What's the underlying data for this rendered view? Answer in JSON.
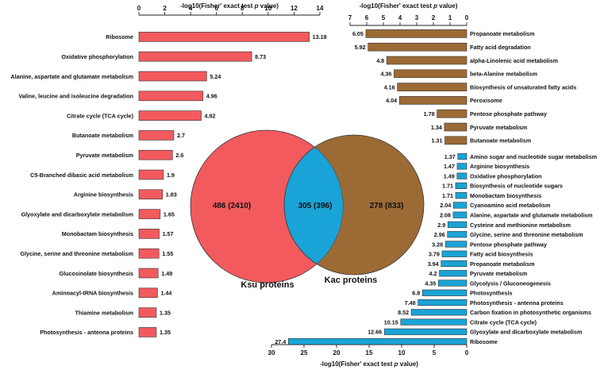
{
  "chart_data": [
    {
      "type": "bar",
      "orientation": "horizontal",
      "panel": "left",
      "xlabel": "-log10(Fisher' exact test p value)",
      "xlim": [
        0,
        14
      ],
      "xticks": [
        0,
        2,
        4,
        6,
        8,
        10,
        12,
        14
      ],
      "color": "#F25A5E",
      "categories": [
        "Ribosome",
        "Oxidative phosphorylation",
        "Alanine, aspartate and glutamate metabolism",
        "Valine, leucine and isoleucine degradation",
        "Citrate cycle (TCA cycle)",
        "Butanoate metabolism",
        "Pyruvate metabolism",
        "C5-Branched dibasic acid metabolism",
        "Arginine biosynthesis",
        "Glyoxylate and dicarboxylate metabolism",
        "Monobactam biosynthesis",
        "Glycine, serine and threonine metabolism",
        "Glucosinolate biosynthesis",
        "Aminoacyl-tRNA biosynthesis",
        "Thiamine metabolism",
        "Photosynthesis - antenna proteins"
      ],
      "values": [
        13.18,
        8.73,
        5.24,
        4.96,
        4.82,
        2.7,
        2.6,
        1.9,
        1.83,
        1.65,
        1.57,
        1.55,
        1.49,
        1.44,
        1.35,
        1.35
      ],
      "labels": [
        "13.18",
        "8.73",
        "5.24",
        "4.96",
        "4.82",
        "2.7",
        "2.6",
        "1.9",
        "1.83",
        "1.65",
        "1.57",
        "1.55",
        "1.49",
        "1.44",
        "1.35",
        "1.35"
      ]
    },
    {
      "type": "bar",
      "orientation": "horizontal",
      "panel": "top-right",
      "xlabel": "-log10(Fisher' exact test p value)",
      "xlim": [
        0,
        7
      ],
      "xticks": [
        7,
        6,
        5,
        4,
        3,
        2,
        1,
        0
      ],
      "reversed": true,
      "color": "#9C6A35",
      "categories": [
        "Propanoate metabolism",
        "Fatty acid degradation",
        "alpha-Linolenic acid metabolism",
        "beta-Alanine metabolism",
        "Biosynthesis of unsaturated fatty acids",
        "Peroxisome",
        "Pentose phosphate pathway",
        "Pyruvate metabolism",
        "Butanoate metabolism"
      ],
      "values": [
        6.05,
        5.92,
        4.8,
        4.36,
        4.16,
        4.04,
        1.78,
        1.34,
        1.31
      ],
      "labels": [
        "6.05",
        "5.92",
        "4.8",
        "4.36",
        "4.16",
        "4.04",
        "1.78",
        "1.34",
        "1.31"
      ]
    },
    {
      "type": "bar",
      "orientation": "horizontal",
      "panel": "bottom-right",
      "xlabel": "-log10(Fisher' exact test p value)",
      "xlim": [
        0,
        30
      ],
      "xticks": [
        30,
        25,
        20,
        15,
        10,
        5,
        0
      ],
      "reversed": true,
      "color": "#1AA3D6",
      "categories": [
        "Amino sugar and nucleotide sugar metabolism",
        "Arginine biosynthesis",
        "Oxidative phosphorylation",
        "Biosynthesis of nucleotide sugars",
        "Monobactam biosynthesis",
        "Cyanoamino acid metabolism",
        "Alanine, aspartate and glutamate metabolism",
        "Cysteine and methionine metabolism",
        "Glycine, serine and threonine metabolism",
        "Pentose phosphate pathway",
        "Fatty acid biosynthesis",
        "Propanoate metabolism",
        "Pyruvate metabolism",
        "Glycolysis / Gluconeogenesis",
        "Photosynthesis",
        "Photosynthesis - antenna proteins",
        "Carbon fixation in photosynthetic organisms",
        "Citrate cycle (TCA cycle)",
        "Glyoxylate and dicarboxylate metabolism",
        "Ribosome"
      ],
      "values": [
        1.37,
        1.47,
        1.49,
        1.71,
        1.71,
        2.04,
        2.08,
        2.9,
        2.96,
        3.28,
        3.79,
        3.94,
        4.2,
        4.35,
        6.8,
        7.48,
        8.52,
        10.15,
        12.66,
        27.4
      ],
      "labels": [
        "1.37",
        "1.47",
        "1.49",
        "1.71",
        "1.71",
        "2.04",
        "2.08",
        "2.9",
        "2.96",
        "3.28",
        "3.79",
        "3.94",
        "4.2",
        "4.35",
        "6.8",
        "7.48",
        "8.52",
        "10.15",
        "12.66",
        "27.4"
      ]
    }
  ],
  "venn": {
    "left": {
      "name": "Ksu proteins",
      "label": "486  (2410)",
      "color": "#F25A5E"
    },
    "right": {
      "name": "Kac proteins",
      "label": "278  (833)",
      "color": "#9C6A35"
    },
    "overlap": {
      "label": "305  (396)",
      "color": "#1AA3D6"
    }
  }
}
